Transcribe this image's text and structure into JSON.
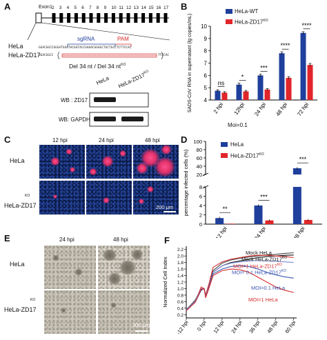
{
  "panels": {
    "A": "A",
    "B": "B",
    "C": "C",
    "D": "D",
    "E": "E",
    "F": "F"
  },
  "panelA": {
    "exon_label": "Exon1",
    "exon_numbers": [
      "2",
      "3",
      "4",
      "5",
      "6",
      "7",
      "8",
      "9",
      "10",
      "11",
      "12",
      "13",
      "14",
      "15",
      "16",
      "17"
    ],
    "sgrna": "sgRNA",
    "pam": "PAM",
    "row_hela": "HeLa",
    "row_ko": "HeLa-ZD17",
    "seq_hela": "GGACGGCCGGGATGGATACGATACCGAAACGGAGCTGCTGCCTCTTCCAC",
    "seq_ko_left": "GGACGGCC",
    "seq_ko_right": "TTCCAC",
    "del_text": "Del 34 nt / Del 34 nt",
    "del_sup": "KO",
    "wb_col1": "HeLa",
    "wb_col2": "HeLa-ZD17",
    "wb_col2_sup": "KO",
    "wb_row1": "WB : ZD17",
    "wb_row2": "WB: GAPDH"
  },
  "panelB": {
    "legend_wt": "HeLa-WT",
    "legend_ko": "HeLa-ZD17",
    "legend_ko_sup": "KO",
    "moi": "Moi=0.1",
    "colors": {
      "wt": "#1f3f9c",
      "ko": "#e0262a"
    }
  },
  "panelC": {
    "col_labels": [
      "12 hpi",
      "24 hpi",
      "48 hpi"
    ],
    "row_hela": "HeLa",
    "row_ko": "HeLa-ZD17",
    "row_ko_sup": "KO",
    "scale": "200 μm"
  },
  "panelD": {
    "legend_hela": "HeLa",
    "legend_ko": "HeLa-ZD17",
    "legend_ko_sup": "KO"
  },
  "panelE": {
    "col_labels": [
      "24 hpi",
      "48 hpi"
    ],
    "row_hela": "HeLa",
    "row_ko": "HeLa-ZD17",
    "row_ko_sup": "KO",
    "scale": "200 μm"
  },
  "panelF": {
    "legend": [
      {
        "text": "Mock  HeLa",
        "color": "#111111"
      },
      {
        "text": "Mock  HeLa-ZD17",
        "sup": "KO",
        "color": "#111111"
      },
      {
        "text": "MOI=1  HeLa-ZD17",
        "sup": "KO",
        "color": "#d42a2a"
      },
      {
        "text": "MOI= 0.1  HeLa-ZD17",
        "sup": "KO",
        "color": "#3a55b0"
      },
      {
        "text": "MOI=0.1  HeLa",
        "color": "#3a55b0"
      },
      {
        "text": "MOI=1  HeLa",
        "color": "#d42a2a"
      }
    ]
  },
  "chart_data": [
    {
      "id": "B",
      "type": "bar",
      "ylabel": "SADS-CoV RNA in supernatant (lg copies/mL)",
      "ylim": [
        4,
        10
      ],
      "yticks": [
        4,
        5,
        6,
        7,
        8,
        9,
        10
      ],
      "categories": [
        "2 hpi",
        "12hpi",
        "24 hpi",
        "48 hpi",
        "72 hpi"
      ],
      "series": [
        {
          "name": "HeLa-WT",
          "values": [
            4.75,
            5.25,
            6.0,
            7.8,
            9.45
          ],
          "err": [
            0.08,
            0.12,
            0.1,
            0.12,
            0.1
          ]
        },
        {
          "name": "HeLa-ZD17 KO",
          "values": [
            4.6,
            4.7,
            4.85,
            5.8,
            6.85
          ],
          "err": [
            0.08,
            0.08,
            0.08,
            0.1,
            0.12
          ]
        }
      ],
      "significance": [
        "ns",
        "*",
        "***",
        "****",
        "****"
      ]
    },
    {
      "id": "D",
      "type": "bar",
      "ylabel": "percentage infected cells (%)",
      "yticks_top": [
        20,
        40,
        60,
        80,
        100
      ],
      "yticks_bottom": [
        0,
        2,
        4,
        6,
        8
      ],
      "axis_break": [
        8,
        20
      ],
      "categories": [
        "12 hpi",
        "24 hpi",
        "48 hpi"
      ],
      "series": [
        {
          "name": "HeLa",
          "values": [
            1.3,
            4.0,
            35
          ],
          "err": [
            0.3,
            0.25,
            3
          ]
        },
        {
          "name": "HeLa-ZD17 KO",
          "values": [
            0.1,
            0.8,
            0.9
          ],
          "err": [
            0.05,
            0.2,
            0.2
          ]
        }
      ],
      "significance": [
        "**",
        "***",
        "***"
      ]
    },
    {
      "id": "F",
      "type": "line",
      "ylabel": "Normalized Cell Index",
      "ylim": [
        0,
        2.3
      ],
      "yticks": [
        0.2,
        0.4,
        0.6,
        0.8,
        1.0,
        1.2,
        1.4,
        1.6,
        1.8,
        2.0,
        2.2
      ],
      "xticks": [
        "-12 hpi",
        "0 hpi",
        "12 hpi",
        "24 hpi",
        "36 hpi",
        "48 hpi",
        "60 hpi"
      ],
      "x": [
        -12,
        -6,
        -2,
        0,
        1,
        3,
        6,
        12,
        18,
        24,
        30,
        36,
        42,
        48,
        54,
        60
      ],
      "series": [
        {
          "name": "Mock HeLa",
          "color": "#111111",
          "values": [
            0.35,
            0.6,
            0.95,
            1.0,
            0.8,
            1.05,
            1.5,
            1.7,
            1.8,
            1.85,
            1.9,
            1.95,
            1.98,
            2.0,
            2.02,
            2.03
          ]
        },
        {
          "name": "Mock HeLa-ZD17 KO",
          "color": "#444444",
          "values": [
            0.35,
            0.65,
            1.0,
            1.0,
            0.78,
            1.1,
            1.55,
            1.78,
            1.88,
            1.93,
            1.97,
            2.0,
            2.03,
            2.05,
            2.08,
            2.1
          ]
        },
        {
          "name": "MOI=1 HeLa-ZD17 KO",
          "color": "#d42a2a",
          "values": [
            0.33,
            0.6,
            1.05,
            1.0,
            0.8,
            1.1,
            1.65,
            1.82,
            1.9,
            1.95,
            2.0,
            2.02,
            2.02,
            2.0,
            1.98,
            1.95
          ]
        },
        {
          "name": "MOI=0.1 HeLa-ZD17 KO",
          "color": "#7a8ad0",
          "values": [
            0.34,
            0.62,
            1.0,
            1.0,
            0.76,
            1.02,
            1.5,
            1.7,
            1.78,
            1.82,
            1.85,
            1.86,
            1.85,
            1.84,
            1.82,
            1.8
          ]
        },
        {
          "name": "MOI=0.1 HeLa",
          "color": "#3a55b0",
          "values": [
            0.33,
            0.58,
            0.95,
            1.0,
            0.74,
            1.0,
            1.45,
            1.6,
            1.68,
            1.7,
            1.68,
            1.6,
            1.5,
            1.42,
            1.36,
            1.32
          ]
        },
        {
          "name": "MOI=1 HeLa",
          "color": "#d42a2a",
          "values": [
            0.32,
            0.58,
            0.98,
            1.0,
            0.72,
            0.98,
            1.4,
            1.55,
            1.6,
            1.58,
            1.5,
            1.35,
            1.2,
            1.05,
            0.95,
            0.88
          ]
        }
      ]
    }
  ]
}
